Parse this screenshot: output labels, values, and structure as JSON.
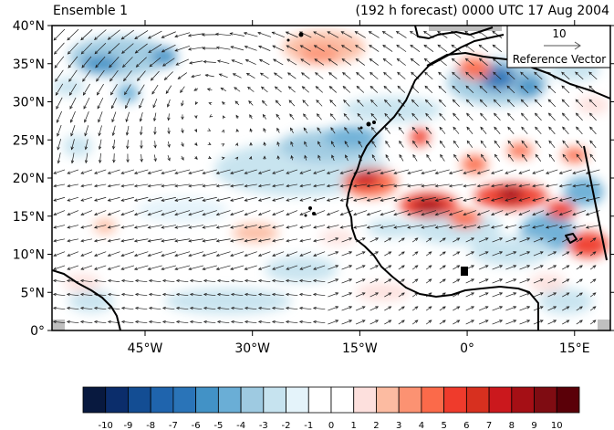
{
  "header": {
    "left_title": "Ensemble 1",
    "right_title": "(192 h forecast) 0000 UTC 17 Aug 2004"
  },
  "map": {
    "lat_range": [
      0,
      40
    ],
    "lon_range": [
      -58,
      20
    ],
    "lat_ticks": [
      "0°",
      "5°N",
      "10°N",
      "15°N",
      "20°N",
      "25°N",
      "30°N",
      "35°N",
      "40°N"
    ],
    "lon_ticks": [
      "45°W",
      "30°W",
      "15°W",
      "0°",
      "15°E"
    ],
    "lon_tick_values": [
      -45,
      -30,
      -15,
      0,
      15
    ],
    "lat_tick_values": [
      0,
      5,
      10,
      15,
      20,
      25,
      30,
      35,
      40
    ]
  },
  "reference_vector": {
    "value": "10",
    "label": "Reference Vector"
  },
  "colorbar": {
    "labels": [
      "-10",
      "-9",
      "-8",
      "-7",
      "-6",
      "-5",
      "-4",
      "-3",
      "-2",
      "-1",
      "0",
      "1",
      "2",
      "3",
      "4",
      "5",
      "6",
      "7",
      "8",
      "9",
      "10"
    ],
    "colors": [
      "#08193f",
      "#0b2d6b",
      "#134d93",
      "#1f64ad",
      "#2a74b8",
      "#4292c6",
      "#6aaed6",
      "#9ecae1",
      "#c6e3ef",
      "#e4f3fa",
      "#ffffff",
      "#ffffff",
      "#fde0dd",
      "#fcbba1",
      "#fc9272",
      "#fb6a4a",
      "#ef3b2c",
      "#d7301f",
      "#cb181d",
      "#a50f15",
      "#7f0c12",
      "#5a0008"
    ]
  },
  "colors": {
    "coast": "#000000",
    "vector": "#1a1a1a",
    "missing": "#bfbfbf"
  }
}
